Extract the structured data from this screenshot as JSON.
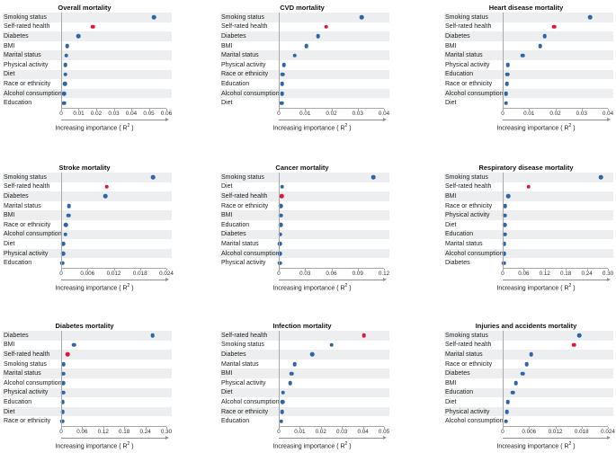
{
  "figure": {
    "xlabel": "Increasing importance ( R² )",
    "colors": {
      "dot_blue": "#2e64a8",
      "dot_red": "#e0173a",
      "band": "#edeeef",
      "axis": "#a8a8a8",
      "text": "#1a1a1a"
    }
  },
  "chart_data": [
    {
      "type": "scatter",
      "title": "Overall mortality",
      "xlabel": "Increasing importance ( R² )",
      "xlim": [
        0,
        0.06
      ],
      "grid": false,
      "ticks": [
        {
          "value": 0,
          "label": "0"
        },
        {
          "value": 0.01,
          "label": "0.01"
        },
        {
          "value": 0.02,
          "label": "0.02"
        },
        {
          "value": 0.03,
          "label": "0.03"
        },
        {
          "value": 0.04,
          "label": "0.04"
        },
        {
          "value": 0.05,
          "label": "0.05"
        },
        {
          "value": 0.06,
          "label": "0.06"
        }
      ],
      "points": [
        {
          "label": "Smoking status",
          "value": 0.053,
          "highlight": false
        },
        {
          "label": "Self-rated health",
          "value": 0.018,
          "highlight": true
        },
        {
          "label": "Diabetes",
          "value": 0.0098,
          "highlight": false
        },
        {
          "label": "BMI",
          "value": 0.0035,
          "highlight": false
        },
        {
          "label": "Marital status",
          "value": 0.003,
          "highlight": false
        },
        {
          "label": "Physical activity",
          "value": 0.0025,
          "highlight": false
        },
        {
          "label": "Diet",
          "value": 0.0024,
          "highlight": false
        },
        {
          "label": "Race or ethnicity",
          "value": 0.0022,
          "highlight": false
        },
        {
          "label": "Alcohol consumption",
          "value": 0.0016,
          "highlight": false
        },
        {
          "label": "Education",
          "value": 0.0015,
          "highlight": false
        }
      ]
    },
    {
      "type": "scatter",
      "title": "CVD mortality",
      "xlabel": "Increasing importance ( R² )",
      "xlim": [
        0,
        0.04
      ],
      "grid": false,
      "ticks": [
        {
          "value": 0,
          "label": "0"
        },
        {
          "value": 0.01,
          "label": "0.01"
        },
        {
          "value": 0.02,
          "label": "0.02"
        },
        {
          "value": 0.03,
          "label": "0.03"
        },
        {
          "value": 0.04,
          "label": "0.04"
        }
      ],
      "points": [
        {
          "label": "Smoking status",
          "value": 0.0315,
          "highlight": false
        },
        {
          "label": "Self-rated health",
          "value": 0.018,
          "highlight": true
        },
        {
          "label": "Diabetes",
          "value": 0.015,
          "highlight": false
        },
        {
          "label": "BMI",
          "value": 0.0105,
          "highlight": false
        },
        {
          "label": "Marital status",
          "value": 0.006,
          "highlight": false
        },
        {
          "label": "Physical activity",
          "value": 0.002,
          "highlight": false
        },
        {
          "label": "Race or ethnicity",
          "value": 0.0015,
          "highlight": false
        },
        {
          "label": "Education",
          "value": 0.0013,
          "highlight": false
        },
        {
          "label": "Alcohol consumption",
          "value": 0.0012,
          "highlight": false
        },
        {
          "label": "Diet",
          "value": 0.001,
          "highlight": false
        }
      ]
    },
    {
      "type": "scatter",
      "title": "Heart disease mortality",
      "xlabel": "Increasing importance ( R² )",
      "xlim": [
        0,
        0.04
      ],
      "grid": false,
      "ticks": [
        {
          "value": 0,
          "label": "0"
        },
        {
          "value": 0.01,
          "label": "0.01"
        },
        {
          "value": 0.02,
          "label": "0.02"
        },
        {
          "value": 0.03,
          "label": "0.03"
        },
        {
          "value": 0.04,
          "label": "0.04"
        }
      ],
      "points": [
        {
          "label": "Smoking status",
          "value": 0.0333,
          "highlight": false
        },
        {
          "label": "Self-rated health",
          "value": 0.0196,
          "highlight": true
        },
        {
          "label": "Diabetes",
          "value": 0.016,
          "highlight": false
        },
        {
          "label": "BMI",
          "value": 0.0142,
          "highlight": false
        },
        {
          "label": "Marital status",
          "value": 0.0075,
          "highlight": false
        },
        {
          "label": "Physical activity",
          "value": 0.002,
          "highlight": false
        },
        {
          "label": "Education",
          "value": 0.0018,
          "highlight": false
        },
        {
          "label": "Race or ethnicity",
          "value": 0.0016,
          "highlight": false
        },
        {
          "label": "Alcohol consumption",
          "value": 0.0013,
          "highlight": false
        },
        {
          "label": "Diet",
          "value": 0.0012,
          "highlight": false
        }
      ]
    },
    {
      "type": "scatter",
      "title": "Stroke mortality",
      "xlabel": "Increasing importance ( R² )",
      "xlim": [
        0,
        0.024
      ],
      "grid": false,
      "ticks": [
        {
          "value": 0,
          "label": "0"
        },
        {
          "value": 0.006,
          "label": "0.006"
        },
        {
          "value": 0.012,
          "label": "0.012"
        },
        {
          "value": 0.018,
          "label": "0.018"
        },
        {
          "value": 0.024,
          "label": "0.024"
        }
      ],
      "points": [
        {
          "label": "Smoking status",
          "value": 0.021,
          "highlight": false
        },
        {
          "label": "Self-rated health",
          "value": 0.0104,
          "highlight": true
        },
        {
          "label": "Diabetes",
          "value": 0.0101,
          "highlight": false
        },
        {
          "label": "Marital status",
          "value": 0.0018,
          "highlight": false
        },
        {
          "label": "BMI",
          "value": 0.0017,
          "highlight": false
        },
        {
          "label": "Race or ethnicity",
          "value": 0.0011,
          "highlight": false
        },
        {
          "label": "Alcohol consumption",
          "value": 0.001,
          "highlight": false
        },
        {
          "label": "Diet",
          "value": 0.0004,
          "highlight": false
        },
        {
          "label": "Physical activity",
          "value": 0.0004,
          "highlight": false
        },
        {
          "label": "Education",
          "value": 0.0003,
          "highlight": false
        }
      ]
    },
    {
      "type": "scatter",
      "title": "Cancer mortality",
      "xlabel": "Increasing importance ( R² )",
      "xlim": [
        0,
        0.12
      ],
      "grid": false,
      "ticks": [
        {
          "value": 0,
          "label": "0"
        },
        {
          "value": 0.03,
          "label": "0.03"
        },
        {
          "value": 0.06,
          "label": "0.06"
        },
        {
          "value": 0.09,
          "label": "0.09"
        },
        {
          "value": 0.12,
          "label": "0.12"
        }
      ],
      "points": [
        {
          "label": "Smoking status",
          "value": 0.108,
          "highlight": false
        },
        {
          "label": "Diet",
          "value": 0.004,
          "highlight": false
        },
        {
          "label": "Self-rated health",
          "value": 0.003,
          "highlight": true
        },
        {
          "label": "Race or ethnicity",
          "value": 0.0025,
          "highlight": false
        },
        {
          "label": "BMI",
          "value": 0.0022,
          "highlight": false
        },
        {
          "label": "Education",
          "value": 0.002,
          "highlight": false
        },
        {
          "label": "Diabetes",
          "value": 0.0018,
          "highlight": false
        },
        {
          "label": "Marital status",
          "value": 0.0015,
          "highlight": false
        },
        {
          "label": "Alcohol consumption",
          "value": 0.0012,
          "highlight": false
        },
        {
          "label": "Physical activity",
          "value": 0.0012,
          "highlight": false
        }
      ]
    },
    {
      "type": "scatter",
      "title": "Respiratory disease mortality",
      "xlabel": "Increasing importance ( R² )",
      "xlim": [
        0,
        0.3
      ],
      "grid": false,
      "ticks": [
        {
          "value": 0,
          "label": "0"
        },
        {
          "value": 0.06,
          "label": "0.06"
        },
        {
          "value": 0.12,
          "label": "0.12"
        },
        {
          "value": 0.18,
          "label": "0.18"
        },
        {
          "value": 0.24,
          "label": "0.24"
        },
        {
          "value": 0.3,
          "label": "0.30"
        }
      ],
      "points": [
        {
          "label": "Smoking status",
          "value": 0.28,
          "highlight": false
        },
        {
          "label": "Self-rated health",
          "value": 0.074,
          "highlight": true
        },
        {
          "label": "BMI",
          "value": 0.016,
          "highlight": false
        },
        {
          "label": "Race or ethnicity",
          "value": 0.007,
          "highlight": false
        },
        {
          "label": "Physical activity",
          "value": 0.006,
          "highlight": false
        },
        {
          "label": "Diet",
          "value": 0.0055,
          "highlight": false
        },
        {
          "label": "Education",
          "value": 0.005,
          "highlight": false
        },
        {
          "label": "Marital status",
          "value": 0.0045,
          "highlight": false
        },
        {
          "label": "Alcohol consumption",
          "value": 0.004,
          "highlight": false
        },
        {
          "label": "Diabetes",
          "value": 0.0025,
          "highlight": false
        }
      ]
    },
    {
      "type": "scatter",
      "title": "Diabetes mortality",
      "xlabel": "Increasing importance ( R² )",
      "xlim": [
        0,
        0.3
      ],
      "grid": false,
      "ticks": [
        {
          "value": 0,
          "label": "0"
        },
        {
          "value": 0.06,
          "label": "0.06"
        },
        {
          "value": 0.12,
          "label": "0.12"
        },
        {
          "value": 0.18,
          "label": "0.18"
        },
        {
          "value": 0.24,
          "label": "0.24"
        },
        {
          "value": 0.3,
          "label": "0.30"
        }
      ],
      "points": [
        {
          "label": "Diabetes",
          "value": 0.261,
          "highlight": false
        },
        {
          "label": "BMI",
          "value": 0.037,
          "highlight": false
        },
        {
          "label": "Self-rated health",
          "value": 0.018,
          "highlight": true
        },
        {
          "label": "Smoking status",
          "value": 0.007,
          "highlight": false
        },
        {
          "label": "Marital status",
          "value": 0.006,
          "highlight": false
        },
        {
          "label": "Alcohol consumption",
          "value": 0.005,
          "highlight": false
        },
        {
          "label": "Physical activity",
          "value": 0.005,
          "highlight": false
        },
        {
          "label": "Education",
          "value": 0.004,
          "highlight": false
        },
        {
          "label": "Diet",
          "value": 0.004,
          "highlight": false
        },
        {
          "label": "Race or ethnicity",
          "value": 0.003,
          "highlight": false
        }
      ]
    },
    {
      "type": "scatter",
      "title": "Infection mortality",
      "xlabel": "Increasing importance ( R² )",
      "xlim": [
        0,
        0.05
      ],
      "grid": false,
      "ticks": [
        {
          "value": 0,
          "label": "0"
        },
        {
          "value": 0.01,
          "label": "0.01"
        },
        {
          "value": 0.02,
          "label": "0.02"
        },
        {
          "value": 0.03,
          "label": "0.03"
        },
        {
          "value": 0.04,
          "label": "0.04"
        },
        {
          "value": 0.05,
          "label": "0.05"
        }
      ],
      "points": [
        {
          "label": "Self-rated health",
          "value": 0.0405,
          "highlight": true
        },
        {
          "label": "Smoking status",
          "value": 0.025,
          "highlight": false
        },
        {
          "label": "Diabetes",
          "value": 0.016,
          "highlight": false
        },
        {
          "label": "Marital status",
          "value": 0.0075,
          "highlight": false
        },
        {
          "label": "BMI",
          "value": 0.006,
          "highlight": false
        },
        {
          "label": "Physical activity",
          "value": 0.0055,
          "highlight": false
        },
        {
          "label": "Diet",
          "value": 0.002,
          "highlight": false
        },
        {
          "label": "Alcohol consumption",
          "value": 0.0018,
          "highlight": false
        },
        {
          "label": "Race or ethnicity",
          "value": 0.0015,
          "highlight": false
        },
        {
          "label": "Education",
          "value": 0.0012,
          "highlight": false
        }
      ]
    },
    {
      "type": "scatter",
      "title": "Injuries and accidents mortality",
      "xlabel": "Increasing importance ( R² )",
      "xlim": [
        0,
        0.024
      ],
      "grid": false,
      "ticks": [
        {
          "value": 0,
          "label": "0"
        },
        {
          "value": 0.006,
          "label": "0.006"
        },
        {
          "value": 0.012,
          "label": "0.012"
        },
        {
          "value": 0.018,
          "label": "0.018"
        },
        {
          "value": 0.024,
          "label": "0.024"
        }
      ],
      "points": [
        {
          "label": "Smoking status",
          "value": 0.0175,
          "highlight": false
        },
        {
          "label": "Self-rated health",
          "value": 0.0162,
          "highlight": true
        },
        {
          "label": "Marital status",
          "value": 0.0065,
          "highlight": false
        },
        {
          "label": "Race or ethnicity",
          "value": 0.0055,
          "highlight": false
        },
        {
          "label": "Diabetes",
          "value": 0.0045,
          "highlight": false
        },
        {
          "label": "BMI",
          "value": 0.003,
          "highlight": false
        },
        {
          "label": "Education",
          "value": 0.0023,
          "highlight": false
        },
        {
          "label": "Diet",
          "value": 0.0012,
          "highlight": false
        },
        {
          "label": "Physical activity",
          "value": 0.001,
          "highlight": false
        },
        {
          "label": "Alcohol consumption",
          "value": 0.0008,
          "highlight": false
        }
      ]
    }
  ]
}
